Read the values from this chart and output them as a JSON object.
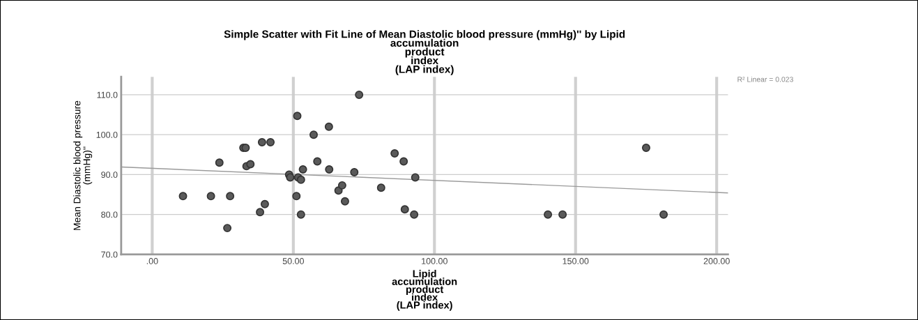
{
  "chart_data": {
    "type": "scatter",
    "title": "Simple Scatter with Fit Line of Mean Diastolic blood pressure (mmHg)'' by Lipid\naccumulation\nproduct\nindex\n(LAP index)",
    "xlabel": "Lipid\naccumulation\nproduct\nindex\n(LAP index)",
    "ylabel": "Mean Diastolic blood pressure\n(mmHg)''",
    "annotations": [
      "R² Linear = 0.023"
    ],
    "series": [
      {
        "color": "#5a5a5a",
        "marker": "circle",
        "x": [
          10.9,
          20.8,
          23.8,
          27.6,
          26.6,
          32.3,
          33.1,
          33.4,
          34.8,
          38.9,
          41.9,
          38.2,
          39.9,
          48.5,
          48.9,
          51.4,
          51.1,
          51.7,
          52.7,
          52.7,
          53.4,
          57.2,
          58.5,
          62.6,
          62.7,
          66.0,
          67.3,
          68.3,
          71.6,
          73.3,
          81.1,
          85.9,
          89.1,
          89.5,
          92.8,
          93.2,
          140.2,
          145.4,
          175.0,
          181.2
        ],
        "values": [
          84.6,
          84.6,
          93.0,
          84.6,
          76.6,
          96.7,
          96.7,
          92.1,
          92.6,
          98.1,
          98.1,
          80.6,
          82.6,
          90.0,
          89.3,
          104.7,
          84.6,
          89.3,
          88.7,
          80.0,
          91.3,
          100.0,
          93.3,
          102.0,
          91.3,
          86.0,
          87.3,
          83.3,
          90.6,
          110.0,
          86.7,
          95.3,
          93.3,
          81.3,
          80.0,
          89.3,
          80.0,
          80.0,
          96.7,
          80.0
        ]
      },
      {
        "type": "line",
        "color": "#9a9a9a",
        "marker": "none",
        "line_style": "solid",
        "x": [
          -11,
          204
        ],
        "values": [
          91.9,
          85.4
        ]
      }
    ],
    "xlim": [
      -11,
      204
    ],
    "xticks": [
      {
        "value": 0,
        "label": ".00"
      },
      {
        "value": 50,
        "label": "50.00"
      },
      {
        "value": 100,
        "label": "100.00"
      },
      {
        "value": 150,
        "label": "150.00"
      },
      {
        "value": 200,
        "label": "200.00"
      }
    ],
    "ylim": [
      70,
      114.5
    ],
    "yticks": [
      {
        "value": 70,
        "label": "70.0"
      },
      {
        "value": 80,
        "label": "80.0"
      },
      {
        "value": 90,
        "label": "90.0"
      },
      {
        "value": 100,
        "label": "100.0"
      },
      {
        "value": 110,
        "label": "110.0"
      }
    ],
    "grid": true,
    "legend": false
  }
}
